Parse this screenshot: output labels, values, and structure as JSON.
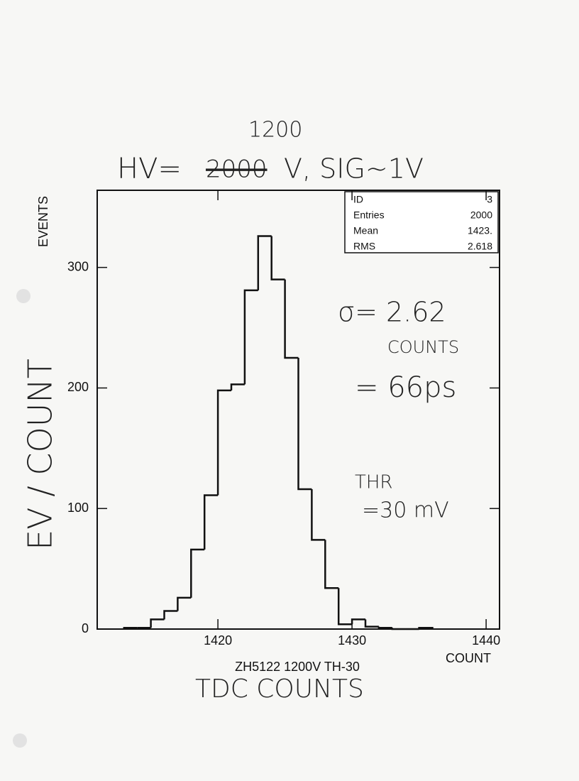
{
  "chart_data": {
    "type": "histogram",
    "title": "ZH5122 1200V TH-30",
    "x_label": "COUNT",
    "y_label": "EVENTS",
    "bins": [
      1413,
      1414,
      1415,
      1416,
      1417,
      1418,
      1419,
      1420,
      1421,
      1422,
      1423,
      1424,
      1425,
      1426,
      1427,
      1428,
      1429,
      1430,
      1431,
      1432,
      1433,
      1434,
      1435,
      1436
    ],
    "counts": [
      1,
      1,
      8,
      15,
      26,
      66,
      111,
      198,
      203,
      281,
      326,
      290,
      225,
      116,
      74,
      34,
      4,
      8,
      2,
      1,
      0,
      0,
      1
    ],
    "color": "#111111",
    "xlim": [
      1411,
      1441
    ],
    "ylim": [
      0,
      364
    ],
    "xticks": [
      1420,
      1430,
      1440
    ],
    "yticks": [
      0,
      100,
      200,
      300
    ],
    "stats": [
      {
        "label": "ID",
        "value": "3"
      },
      {
        "label": "Entries",
        "value": "2000"
      },
      {
        "label": "Mean",
        "value": "1423."
      },
      {
        "label": "RMS",
        "value": "2.618"
      }
    ],
    "annotations": [
      "1200",
      "HV=",
      "2000",
      "V, SIG~1V",
      "EV / COUNT",
      "σ= 2.62",
      "COUNTS",
      "= 66ps",
      "THR",
      "=30 mV",
      "TDC COUNTS"
    ]
  }
}
